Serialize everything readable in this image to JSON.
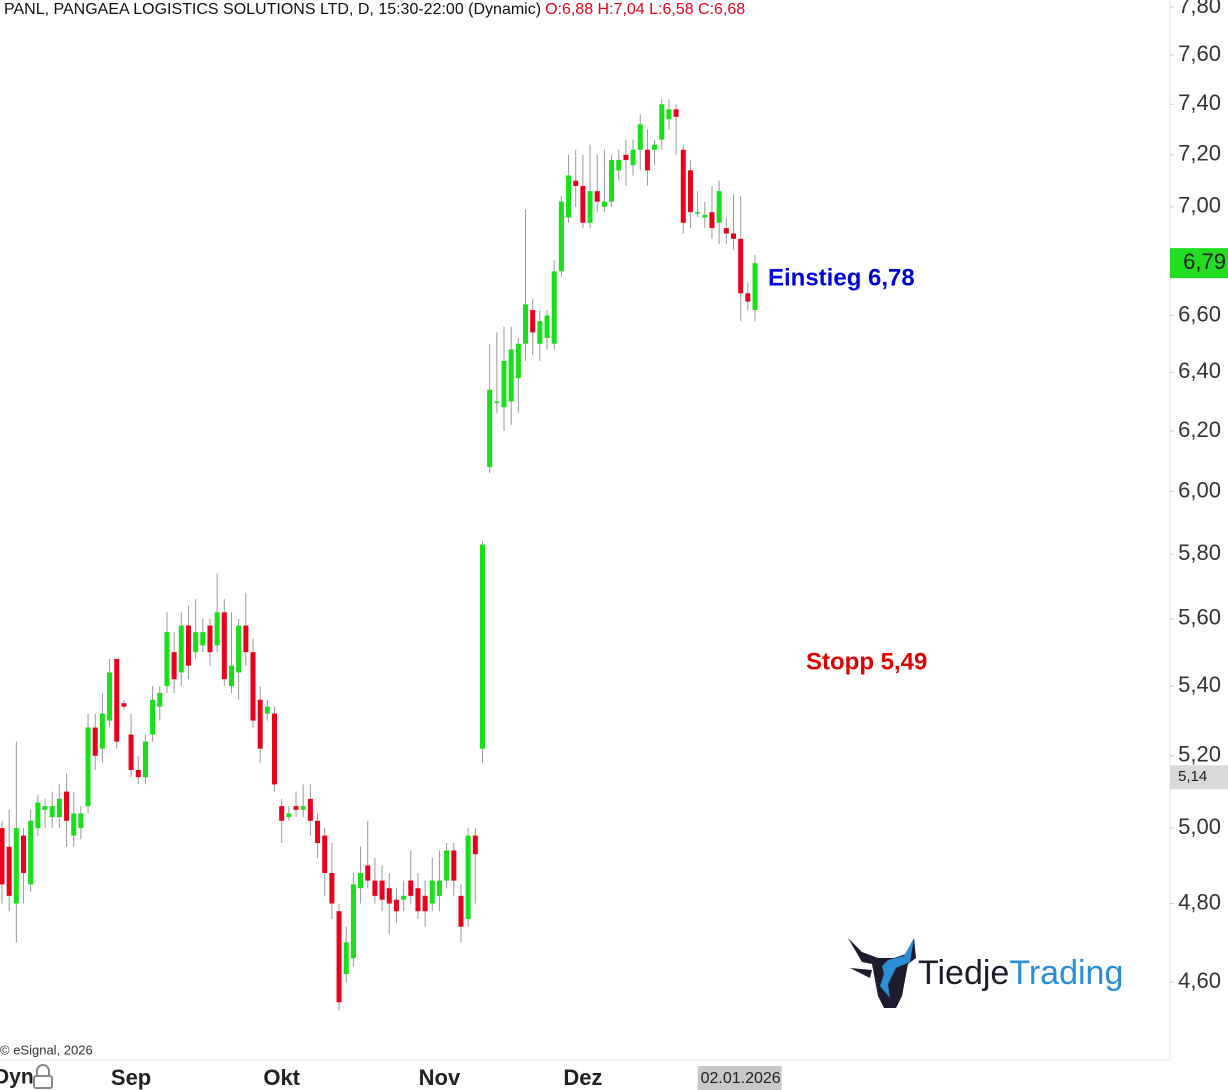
{
  "chart_data": {
    "type": "candlestick",
    "title": "PANL, PANGAEA LOGISTICS SOLUTIONS LTD, D, 15:30-22:00 (Dynamic)",
    "ohlc_label": "O:6,88 H:7,04 L:6,58 C:6,68",
    "log_y": true,
    "grid": false,
    "up_color": "#18e018",
    "down_color": "#e8001c",
    "ylim": [
      4.41,
      7.83
    ],
    "yticks": [
      {
        "value": 7.8,
        "label": "7,80"
      },
      {
        "value": 7.6,
        "label": "7,60"
      },
      {
        "value": 7.4,
        "label": "7,40"
      },
      {
        "value": 7.2,
        "label": "7,20"
      },
      {
        "value": 7.0,
        "label": "7,00"
      },
      {
        "value": 6.6,
        "label": "6,60"
      },
      {
        "value": 6.4,
        "label": "6,40"
      },
      {
        "value": 6.2,
        "label": "6,20"
      },
      {
        "value": 6.0,
        "label": "6,00"
      },
      {
        "value": 5.8,
        "label": "5,80"
      },
      {
        "value": 5.6,
        "label": "5,60"
      },
      {
        "value": 5.4,
        "label": "5,40"
      },
      {
        "value": 5.2,
        "label": "5,20"
      },
      {
        "value": 5.0,
        "label": "5,00"
      },
      {
        "value": 4.8,
        "label": "4,80"
      },
      {
        "value": 4.6,
        "label": "4,60"
      }
    ],
    "categories": [
      null,
      null,
      null,
      null,
      null,
      null,
      null,
      null,
      null,
      null,
      null,
      null,
      null,
      null,
      null,
      null,
      null,
      null,
      "Sep",
      null,
      null,
      null,
      null,
      null,
      null,
      null,
      null,
      null,
      null,
      null,
      null,
      null,
      null,
      null,
      null,
      null,
      null,
      null,
      null,
      "Okt",
      null,
      null,
      null,
      null,
      null,
      null,
      null,
      null,
      null,
      null,
      null,
      null,
      null,
      null,
      null,
      null,
      null,
      null,
      null,
      null,
      null,
      "Nov",
      null,
      null,
      null,
      null,
      null,
      null,
      null,
      null,
      null,
      null,
      null,
      null,
      null,
      null,
      null,
      null,
      null,
      null,
      null,
      "Dez",
      null,
      null,
      null,
      null,
      null,
      null,
      null,
      null,
      null,
      null,
      null,
      null,
      null,
      null,
      null,
      null,
      null,
      null,
      null,
      null,
      null,
      "02.01.2026",
      null,
      null
    ],
    "open": [
      5.0,
      4.95,
      4.8,
      4.98,
      4.85,
      5.0,
      5.05,
      5.03,
      5.03,
      5.1,
      4.98,
      5.0,
      5.06,
      5.28,
      5.22,
      5.3,
      5.48,
      5.35,
      5.26,
      5.16,
      5.14,
      5.26,
      5.34,
      5.4,
      5.5,
      5.44,
      5.58,
      5.5,
      5.52,
      5.58,
      5.52,
      5.62,
      5.4,
      5.44,
      5.58,
      5.5,
      5.36,
      5.32,
      5.32,
      5.06,
      5.03,
      5.06,
      5.05,
      5.08,
      5.02,
      4.98,
      4.88,
      4.78,
      4.62,
      4.66,
      4.84,
      4.9,
      4.86,
      4.86,
      4.84,
      4.81,
      4.81,
      4.86,
      4.84,
      4.82,
      4.8,
      4.82,
      4.86,
      4.94,
      4.82,
      4.76,
      4.98,
      5.22,
      6.08,
      6.3,
      6.28,
      6.3,
      6.38,
      6.5,
      6.62,
      6.5,
      6.52,
      6.5,
      6.76,
      6.96,
      7.1,
      7.08,
      6.94,
      7.06,
      7.0,
      7.02,
      7.14,
      7.2,
      7.16,
      7.22,
      7.22,
      7.22,
      7.26,
      7.34,
      7.38,
      7.22,
      7.14,
      6.98,
      6.96,
      6.98,
      6.94,
      6.92,
      6.9,
      6.88,
      6.68,
      6.62
    ],
    "high": [
      5.02,
      5.05,
      5.24,
      5.0,
      5.05,
      5.09,
      5.08,
      5.1,
      5.12,
      5.15,
      5.1,
      5.06,
      5.32,
      5.32,
      5.38,
      5.48,
      5.48,
      5.36,
      5.32,
      5.2,
      5.26,
      5.4,
      5.4,
      5.62,
      5.56,
      5.62,
      5.64,
      5.66,
      5.6,
      5.6,
      5.74,
      5.66,
      5.62,
      5.6,
      5.68,
      5.54,
      5.4,
      5.36,
      5.34,
      5.08,
      5.06,
      5.1,
      5.12,
      5.12,
      5.04,
      5.0,
      4.96,
      4.8,
      4.74,
      4.88,
      4.95,
      5.02,
      4.92,
      4.9,
      4.88,
      4.84,
      4.86,
      4.94,
      4.88,
      4.86,
      4.92,
      4.94,
      4.96,
      4.96,
      4.85,
      5.0,
      5.0,
      5.84,
      6.5,
      6.54,
      6.56,
      6.56,
      6.52,
      6.99,
      6.66,
      6.62,
      6.62,
      6.8,
      7.04,
      7.2,
      7.22,
      7.2,
      7.24,
      7.2,
      7.22,
      7.2,
      7.22,
      7.26,
      7.26,
      7.36,
      7.3,
      7.26,
      7.42,
      7.42,
      7.4,
      7.24,
      7.18,
      7.06,
      7.02,
      7.08,
      7.1,
      6.96,
      7.05,
      7.04,
      6.72,
      6.82
    ],
    "low": [
      4.8,
      4.78,
      4.7,
      4.8,
      4.83,
      4.98,
      5.0,
      5.0,
      5.0,
      4.95,
      4.95,
      4.97,
      5.04,
      5.16,
      5.18,
      5.28,
      5.22,
      5.33,
      5.14,
      5.12,
      5.12,
      5.24,
      5.3,
      5.38,
      5.38,
      5.4,
      5.42,
      5.48,
      5.5,
      5.46,
      5.5,
      5.4,
      5.38,
      5.36,
      5.46,
      5.28,
      5.18,
      5.3,
      5.1,
      4.96,
      5.02,
      5.03,
      5.03,
      4.98,
      4.92,
      4.82,
      4.76,
      4.53,
      4.6,
      4.64,
      4.8,
      4.84,
      4.8,
      4.78,
      4.72,
      4.75,
      4.78,
      4.8,
      4.76,
      4.74,
      4.78,
      4.78,
      4.84,
      4.82,
      4.7,
      4.74,
      4.8,
      5.18,
      6.06,
      6.26,
      6.2,
      6.22,
      6.26,
      6.44,
      6.46,
      6.44,
      6.48,
      6.48,
      6.74,
      6.94,
      7.0,
      6.92,
      6.92,
      6.98,
      6.98,
      7.0,
      7.1,
      7.08,
      7.12,
      7.14,
      7.08,
      7.16,
      7.22,
      7.3,
      7.2,
      6.9,
      6.92,
      6.96,
      6.92,
      6.88,
      6.86,
      6.86,
      6.84,
      6.58,
      6.62,
      6.58
    ],
    "close": [
      4.85,
      4.82,
      5.0,
      4.88,
      5.02,
      5.07,
      5.06,
      5.06,
      5.08,
      5.02,
      5.04,
      5.04,
      5.28,
      5.2,
      5.32,
      5.44,
      5.24,
      5.34,
      5.16,
      5.14,
      5.24,
      5.36,
      5.38,
      5.56,
      5.42,
      5.58,
      5.46,
      5.56,
      5.56,
      5.5,
      5.62,
      5.42,
      5.46,
      5.58,
      5.5,
      5.3,
      5.22,
      5.34,
      5.12,
      5.02,
      5.04,
      5.05,
      5.06,
      5.02,
      4.96,
      4.88,
      4.8,
      4.55,
      4.7,
      4.85,
      4.88,
      4.86,
      4.82,
      4.81,
      4.8,
      4.78,
      4.82,
      4.82,
      4.78,
      4.78,
      4.86,
      4.86,
      4.94,
      4.86,
      4.74,
      4.98,
      4.93,
      5.83,
      6.34,
      6.3,
      6.44,
      6.48,
      6.5,
      6.64,
      6.54,
      6.58,
      6.6,
      6.76,
      7.02,
      7.12,
      7.08,
      6.94,
      7.06,
      7.02,
      7.02,
      7.18,
      7.18,
      7.18,
      7.22,
      7.32,
      7.14,
      7.24,
      7.4,
      7.38,
      7.35,
      6.94,
      6.98,
      6.98,
      6.97,
      6.92,
      7.06,
      6.9,
      6.88,
      6.68,
      6.65,
      6.79
    ],
    "price_markers": [
      {
        "value": 6.79,
        "label": "6,79",
        "color": "#22dd22"
      },
      {
        "value": 5.14,
        "label": "5,14",
        "color": "#d9d9d9"
      }
    ],
    "annotations": [
      {
        "text": "Einstieg 6,78",
        "color": "#0000dd"
      },
      {
        "text": "Stopp 5,49",
        "color": "#e00000"
      }
    ],
    "copyright": "© eSignal, 2026",
    "mode_label": "Dyn",
    "logo": {
      "part1": "Tiedje",
      "part1_color": "#1c1c2c",
      "part2": "Trading",
      "part2_color": "#2a8fd6"
    }
  }
}
